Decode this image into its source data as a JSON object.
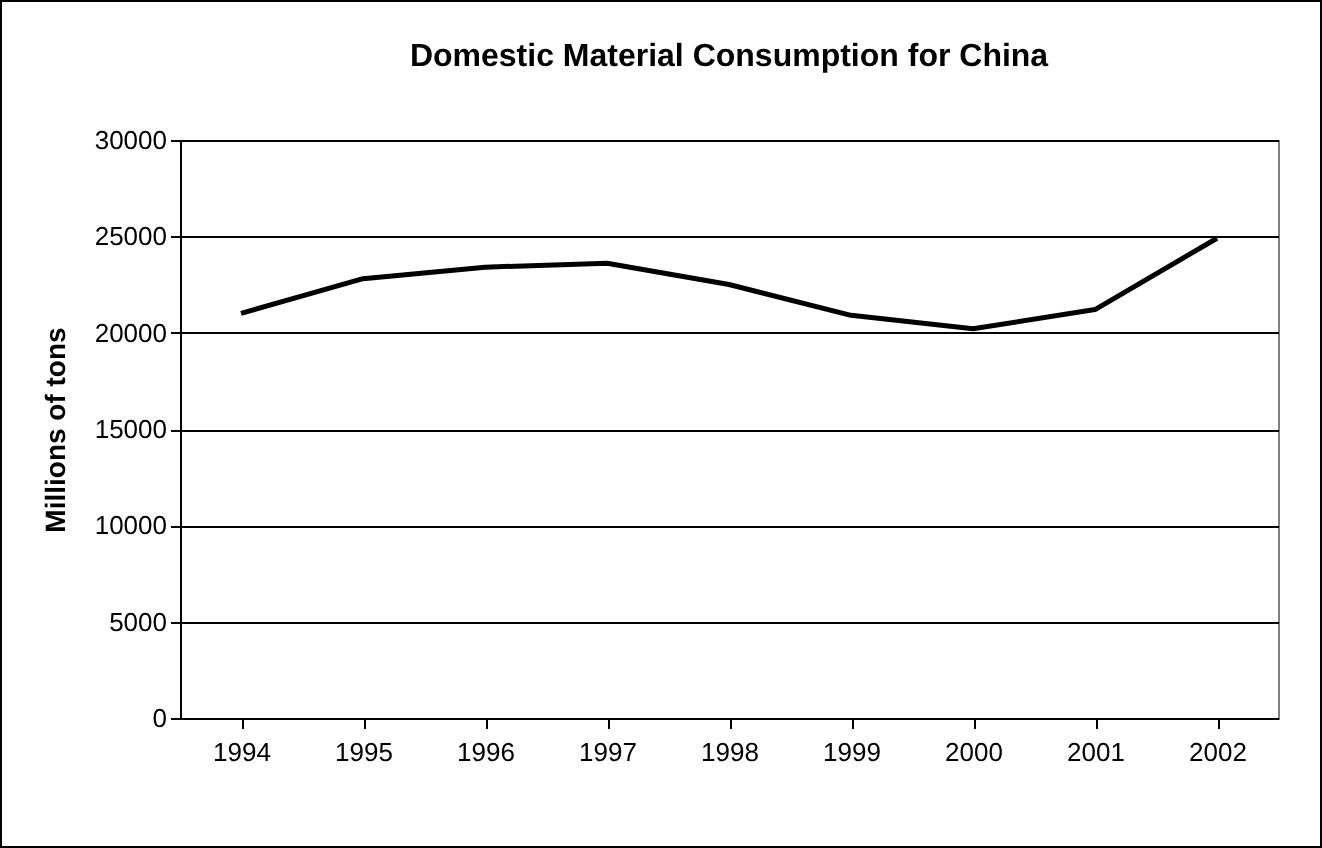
{
  "chart_data": {
    "type": "line",
    "title": "Domestic Material Consumption for China",
    "ylabel": "Millions of tons",
    "categories": [
      "1994",
      "1995",
      "1996",
      "1997",
      "1998",
      "1999",
      "2000",
      "2001",
      "2002"
    ],
    "series": [
      {
        "color": "#000000",
        "values": [
          21000,
          22800,
          23400,
          23600,
          22500,
          20900,
          20200,
          21200,
          24900
        ]
      }
    ],
    "ylim": [
      0,
      30000
    ],
    "yticks": [
      0,
      5000,
      10000,
      15000,
      20000,
      25000,
      30000
    ],
    "grid": "y",
    "legend": false,
    "marker": "none",
    "line_style": "solid"
  }
}
